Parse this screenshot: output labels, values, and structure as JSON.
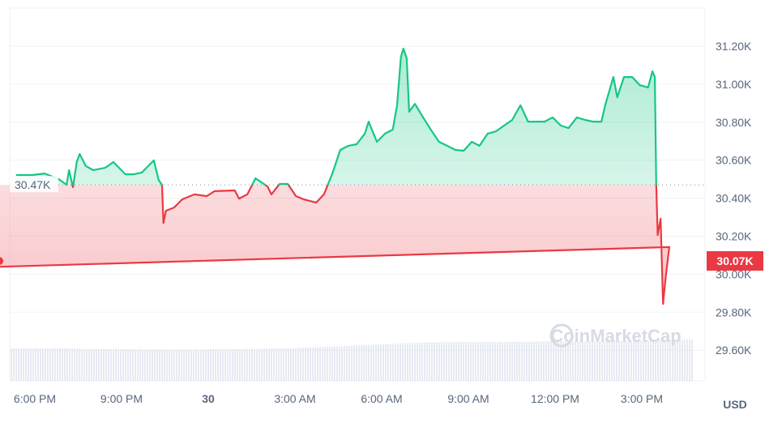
{
  "chart_data": {
    "type": "line",
    "title": "",
    "currency_label": "USD",
    "watermark": "CoinMarketCap",
    "baseline": {
      "value": 30470,
      "label": "30.47K"
    },
    "current": {
      "value": 30070,
      "label": "30.07K"
    },
    "ylim": [
      29450,
      31330
    ],
    "y_ticks": [
      {
        "value": 29600,
        "label": "29.60K"
      },
      {
        "value": 29800,
        "label": "29.80K"
      },
      {
        "value": 30000,
        "label": "30.00K"
      },
      {
        "value": 30200,
        "label": "30.20K"
      },
      {
        "value": 30400,
        "label": "30.40K"
      },
      {
        "value": 30600,
        "label": "30.60K"
      },
      {
        "value": 30800,
        "label": "30.80K"
      },
      {
        "value": 31000,
        "label": "31.00K"
      },
      {
        "value": 31200,
        "label": "31.20K"
      }
    ],
    "x_ticks": [
      {
        "time": "18:00",
        "label": "6:00 PM",
        "bold": false
      },
      {
        "time": "21:00",
        "label": "9:00 PM",
        "bold": false
      },
      {
        "time": "00:00",
        "label": "30",
        "bold": true
      },
      {
        "time": "03:00",
        "label": "3:00 AM",
        "bold": false
      },
      {
        "time": "06:00",
        "label": "6:00 AM",
        "bold": false
      },
      {
        "time": "09:00",
        "label": "9:00 AM",
        "bold": false
      },
      {
        "time": "12:00",
        "label": "12:00 PM",
        "bold": false
      },
      {
        "time": "15:00",
        "label": "3:00 PM",
        "bold": false
      }
    ],
    "grid": true,
    "colors": {
      "up": "#16c784",
      "down": "#ea3943",
      "grid": "#eff2f5",
      "text": "#58667e",
      "volume": "#cfd6e4"
    },
    "series": [
      {
        "x": [
          "17:21",
          "17:55",
          "18:20",
          "18:49",
          "19:06",
          "19:11",
          "19:19",
          "19:27",
          "19:33",
          "19:46",
          "20:01",
          "20:26",
          "20:43",
          "21:08",
          "21:25",
          "21:42",
          "22:07",
          "22:17",
          "22:24",
          "22:27",
          "22:32",
          "22:49",
          "23:06",
          "23:31",
          "23:57",
          "00:13",
          "00:55",
          "01:04",
          "01:21",
          "01:38",
          "02:03",
          "02:11",
          "02:28",
          "02:45",
          "03:02",
          "03:18",
          "03:44",
          "04:00",
          "04:17",
          "04:34",
          "04:51",
          "05:08",
          "05:25",
          "05:33",
          "05:50",
          "06:07",
          "06:23",
          "06:32",
          "06:40",
          "06:45",
          "06:52",
          "06:57",
          "07:09",
          "07:26",
          "07:42",
          "07:59",
          "08:16",
          "08:33",
          "08:50",
          "09:07",
          "09:23",
          "09:40",
          "09:57",
          "10:14",
          "10:31",
          "10:48",
          "11:04",
          "11:21",
          "11:38",
          "11:55",
          "12:12",
          "12:28",
          "12:45",
          "13:02",
          "13:19",
          "13:36",
          "13:44",
          "14:01",
          "14:09",
          "14:23",
          "14:40",
          "14:56",
          "15:13",
          "15:22",
          "15:27",
          "15:30",
          "15:33",
          "15:39",
          "15:44",
          "15:50",
          "15:57",
          "16:02",
          "16:09",
          "16:17",
          "16:29",
          "16:37",
          "16:42",
          "16:46"
        ],
        "y": [
          30522,
          30522,
          30530,
          30501,
          30471,
          30548,
          30458,
          30590,
          30633,
          30569,
          30548,
          30560,
          30590,
          30526,
          30526,
          30535,
          30599,
          30496,
          30471,
          30270,
          30334,
          30351,
          30394,
          30420,
          30411,
          30437,
          30441,
          30398,
          30420,
          30505,
          30462,
          30420,
          30475,
          30475,
          30411,
          30394,
          30377,
          30420,
          30526,
          30654,
          30676,
          30684,
          30740,
          30803,
          30697,
          30740,
          30761,
          30889,
          31145,
          31187,
          31136,
          30855,
          30897,
          30825,
          30761,
          30697,
          30676,
          30654,
          30650,
          30697,
          30676,
          30740,
          30752,
          30782,
          30812,
          30889,
          30803,
          30803,
          30803,
          30825,
          30782,
          30769,
          30825,
          30812,
          30803,
          30803,
          30889,
          31038,
          30931,
          31038,
          31038,
          30995,
          30983,
          31068,
          31038,
          30471,
          30206,
          30292,
          29844,
          29993,
          30143,
          30036,
          30270,
          30172,
          30172,
          30070,
          30010,
          30070
        ]
      }
    ],
    "volume_relative": [
      1.0,
      1.0,
      0.98,
      0.97,
      0.97,
      0.98,
      1.0,
      1.05,
      1.12,
      1.18,
      1.2,
      1.2,
      1.22,
      1.22,
      1.24,
      1.28
    ]
  }
}
